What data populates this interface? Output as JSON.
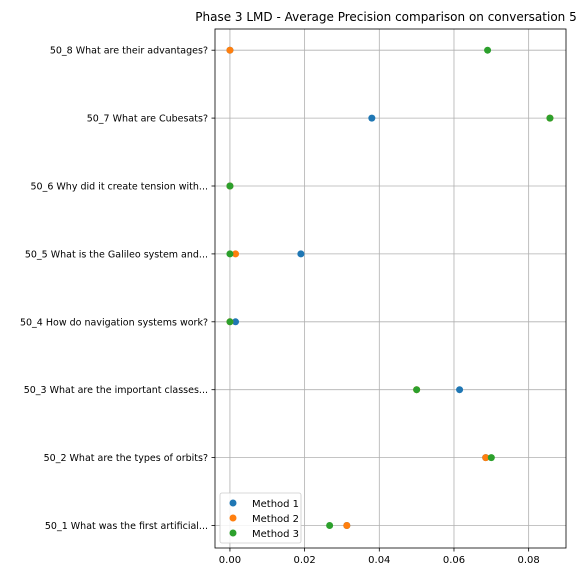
{
  "chart_data": {
    "type": "scatter",
    "title": "Phase 3 LMD - Average Precision comparison on conversation 5",
    "xlabel": "",
    "ylabel": "",
    "xlim": [
      -0.004,
      0.09
    ],
    "xticks": [
      0.0,
      0.02,
      0.04,
      0.06,
      0.08
    ],
    "xtick_labels": [
      "0.00",
      "0.02",
      "0.04",
      "0.06",
      "0.08"
    ],
    "grid": true,
    "legend_position": "lower-left",
    "categories": [
      "50_1 What was the first artificial...",
      "50_2 What are the types of orbits?",
      "50_3 What are the important classes...",
      "50_4 How do navigation systems work?",
      "50_5 What is the Galileo system and...",
      "50_6 Why did it create tension with...",
      "50_7 What are Cubesats?",
      "50_8 What are their advantages?"
    ],
    "series": [
      {
        "name": "Method 1",
        "color": "#1f77b4",
        "values": [
          0.0313,
          0.0685,
          0.0615,
          0.0015,
          0.019,
          0.0,
          0.038,
          0.0
        ]
      },
      {
        "name": "Method 2",
        "color": "#ff7f0e",
        "values": [
          0.0313,
          0.0685,
          0.05,
          0.0,
          0.0015,
          0.0,
          0.0857,
          0.0
        ]
      },
      {
        "name": "Method 3",
        "color": "#2ca02c",
        "values": [
          0.0267,
          0.07,
          0.05,
          0.0,
          0.0,
          0.0,
          0.0857,
          0.069
        ]
      }
    ]
  }
}
